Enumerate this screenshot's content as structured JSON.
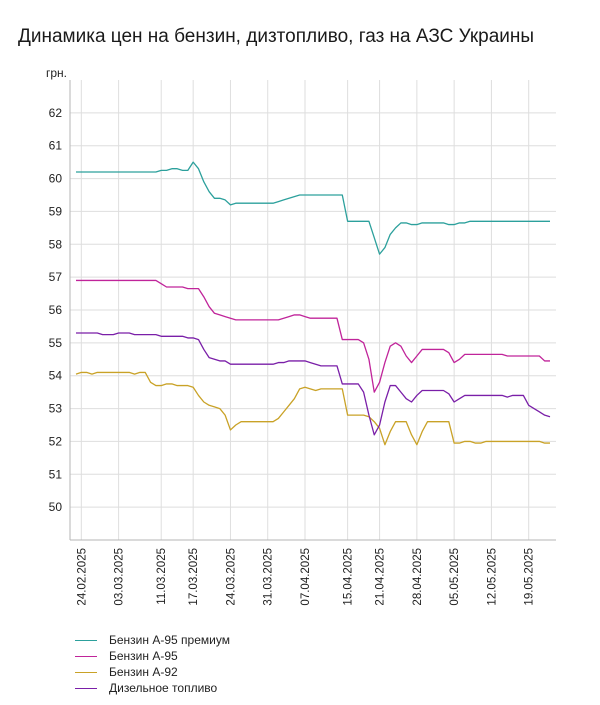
{
  "chart_data": {
    "type": "line",
    "title": "Динамика цен на бензин, дизтопливо, газ на АЗС Украины",
    "ylabel": "грн.",
    "ylim": [
      49,
      63
    ],
    "yticks": [
      50,
      51,
      52,
      53,
      54,
      55,
      56,
      57,
      58,
      59,
      60,
      61,
      62
    ],
    "x_dates": [
      "2025-02-23",
      "2025-02-24",
      "2025-02-25",
      "2025-02-26",
      "2025-02-27",
      "2025-02-28",
      "2025-03-01",
      "2025-03-02",
      "2025-03-03",
      "2025-03-04",
      "2025-03-05",
      "2025-03-06",
      "2025-03-07",
      "2025-03-08",
      "2025-03-09",
      "2025-03-10",
      "2025-03-11",
      "2025-03-12",
      "2025-03-13",
      "2025-03-14",
      "2025-03-15",
      "2025-03-16",
      "2025-03-17",
      "2025-03-18",
      "2025-03-19",
      "2025-03-20",
      "2025-03-21",
      "2025-03-22",
      "2025-03-23",
      "2025-03-24",
      "2025-03-25",
      "2025-03-26",
      "2025-03-27",
      "2025-03-28",
      "2025-03-29",
      "2025-03-30",
      "2025-03-31",
      "2025-04-01",
      "2025-04-02",
      "2025-04-03",
      "2025-04-04",
      "2025-04-05",
      "2025-04-06",
      "2025-04-07",
      "2025-04-08",
      "2025-04-09",
      "2025-04-10",
      "2025-04-11",
      "2025-04-12",
      "2025-04-13",
      "2025-04-14",
      "2025-04-15",
      "2025-04-16",
      "2025-04-17",
      "2025-04-18",
      "2025-04-19",
      "2025-04-20",
      "2025-04-21",
      "2025-04-22",
      "2025-04-23",
      "2025-04-24",
      "2025-04-25",
      "2025-04-26",
      "2025-04-27",
      "2025-04-28",
      "2025-04-29",
      "2025-04-30",
      "2025-05-01",
      "2025-05-02",
      "2025-05-03",
      "2025-05-04",
      "2025-05-05",
      "2025-05-06",
      "2025-05-07",
      "2025-05-08",
      "2025-05-09",
      "2025-05-10",
      "2025-05-11",
      "2025-05-12",
      "2025-05-13",
      "2025-05-14",
      "2025-05-15",
      "2025-05-16",
      "2025-05-17",
      "2025-05-18",
      "2025-05-19",
      "2025-05-20",
      "2025-05-21",
      "2025-05-22",
      "2025-05-23"
    ],
    "x_tick_labels": [
      "24.02.2025",
      "03.03.2025",
      "11.03.2025",
      "17.03.2025",
      "24.03.2025",
      "31.03.2025",
      "07.04.2025",
      "15.04.2025",
      "21.04.2025",
      "28.04.2025",
      "05.05.2025",
      "12.05.2025",
      "19.05.2025"
    ],
    "x_tick_dates": [
      "2025-02-24",
      "2025-03-03",
      "2025-03-11",
      "2025-03-17",
      "2025-03-24",
      "2025-03-31",
      "2025-04-07",
      "2025-04-15",
      "2025-04-21",
      "2025-04-28",
      "2025-05-05",
      "2025-05-12",
      "2025-05-19"
    ],
    "grid": true,
    "legend_position": "bottom-left",
    "series": [
      {
        "name": "Бензин А-95 премиум",
        "color": "#2ca09c",
        "values": [
          60.2,
          60.2,
          60.2,
          60.2,
          60.2,
          60.2,
          60.2,
          60.2,
          60.2,
          60.2,
          60.2,
          60.2,
          60.2,
          60.2,
          60.2,
          60.2,
          60.25,
          60.25,
          60.3,
          60.3,
          60.25,
          60.25,
          60.5,
          60.3,
          59.9,
          59.6,
          59.4,
          59.4,
          59.35,
          59.2,
          59.25,
          59.25,
          59.25,
          59.25,
          59.25,
          59.25,
          59.25,
          59.25,
          59.3,
          59.35,
          59.4,
          59.45,
          59.5,
          59.5,
          59.5,
          59.5,
          59.5,
          59.5,
          59.5,
          59.5,
          59.5,
          58.7,
          58.7,
          58.7,
          58.7,
          58.7,
          58.2,
          57.7,
          57.9,
          58.3,
          58.5,
          58.65,
          58.65,
          58.6,
          58.6,
          58.65,
          58.65,
          58.65,
          58.65,
          58.65,
          58.6,
          58.6,
          58.65,
          58.65,
          58.7,
          58.7,
          58.7,
          58.7,
          58.7,
          58.7,
          58.7,
          58.7,
          58.7,
          58.7,
          58.7,
          58.7,
          58.7,
          58.7,
          58.7,
          58.7
        ]
      },
      {
        "name": "Бензин А-95",
        "color": "#c0249a",
        "values": [
          56.9,
          56.9,
          56.9,
          56.9,
          56.9,
          56.9,
          56.9,
          56.9,
          56.9,
          56.9,
          56.9,
          56.9,
          56.9,
          56.9,
          56.9,
          56.9,
          56.8,
          56.7,
          56.7,
          56.7,
          56.7,
          56.65,
          56.65,
          56.65,
          56.4,
          56.1,
          55.9,
          55.85,
          55.8,
          55.75,
          55.7,
          55.7,
          55.7,
          55.7,
          55.7,
          55.7,
          55.7,
          55.7,
          55.7,
          55.75,
          55.8,
          55.85,
          55.85,
          55.8,
          55.75,
          55.75,
          55.75,
          55.75,
          55.75,
          55.75,
          55.1,
          55.1,
          55.1,
          55.1,
          55.0,
          54.5,
          53.5,
          53.8,
          54.4,
          54.9,
          55.0,
          54.9,
          54.6,
          54.4,
          54.6,
          54.8,
          54.8,
          54.8,
          54.8,
          54.8,
          54.7,
          54.4,
          54.5,
          54.65,
          54.65,
          54.65,
          54.65,
          54.65,
          54.65,
          54.65,
          54.65,
          54.6,
          54.6,
          54.6,
          54.6,
          54.6,
          54.6,
          54.6,
          54.45,
          54.45
        ]
      },
      {
        "name": "Бензин А-92",
        "color": "#c9a227",
        "values": [
          54.05,
          54.1,
          54.1,
          54.05,
          54.1,
          54.1,
          54.1,
          54.1,
          54.1,
          54.1,
          54.1,
          54.05,
          54.1,
          54.1,
          53.8,
          53.7,
          53.7,
          53.75,
          53.75,
          53.7,
          53.7,
          53.7,
          53.65,
          53.4,
          53.2,
          53.1,
          53.05,
          53.0,
          52.8,
          52.35,
          52.5,
          52.6,
          52.6,
          52.6,
          52.6,
          52.6,
          52.6,
          52.6,
          52.7,
          52.9,
          53.1,
          53.3,
          53.6,
          53.65,
          53.6,
          53.55,
          53.6,
          53.6,
          53.6,
          53.6,
          53.6,
          52.8,
          52.8,
          52.8,
          52.8,
          52.75,
          52.6,
          52.4,
          51.9,
          52.3,
          52.6,
          52.6,
          52.6,
          52.2,
          51.9,
          52.3,
          52.6,
          52.6,
          52.6,
          52.6,
          52.6,
          51.95,
          51.95,
          52.0,
          52.0,
          51.95,
          51.95,
          52.0,
          52.0,
          52.0,
          52.0,
          52.0,
          52.0,
          52.0,
          52.0,
          52.0,
          52.0,
          52.0,
          51.95,
          51.95
        ]
      },
      {
        "name": "Дизельное топливо",
        "color": "#7a1fa8",
        "values": [
          55.3,
          55.3,
          55.3,
          55.3,
          55.3,
          55.25,
          55.25,
          55.25,
          55.3,
          55.3,
          55.3,
          55.25,
          55.25,
          55.25,
          55.25,
          55.25,
          55.2,
          55.2,
          55.2,
          55.2,
          55.2,
          55.15,
          55.15,
          55.1,
          54.8,
          54.55,
          54.5,
          54.45,
          54.45,
          54.35,
          54.35,
          54.35,
          54.35,
          54.35,
          54.35,
          54.35,
          54.35,
          54.35,
          54.4,
          54.4,
          54.45,
          54.45,
          54.45,
          54.45,
          54.4,
          54.35,
          54.3,
          54.3,
          54.3,
          54.3,
          53.75,
          53.75,
          53.75,
          53.75,
          53.5,
          52.8,
          52.2,
          52.5,
          53.2,
          53.7,
          53.7,
          53.5,
          53.3,
          53.2,
          53.4,
          53.55,
          53.55,
          53.55,
          53.55,
          53.55,
          53.45,
          53.2,
          53.3,
          53.4,
          53.4,
          53.4,
          53.4,
          53.4,
          53.4,
          53.4,
          53.4,
          53.35,
          53.4,
          53.4,
          53.4,
          53.1,
          53.0,
          52.9,
          52.8,
          52.75
        ]
      }
    ]
  }
}
